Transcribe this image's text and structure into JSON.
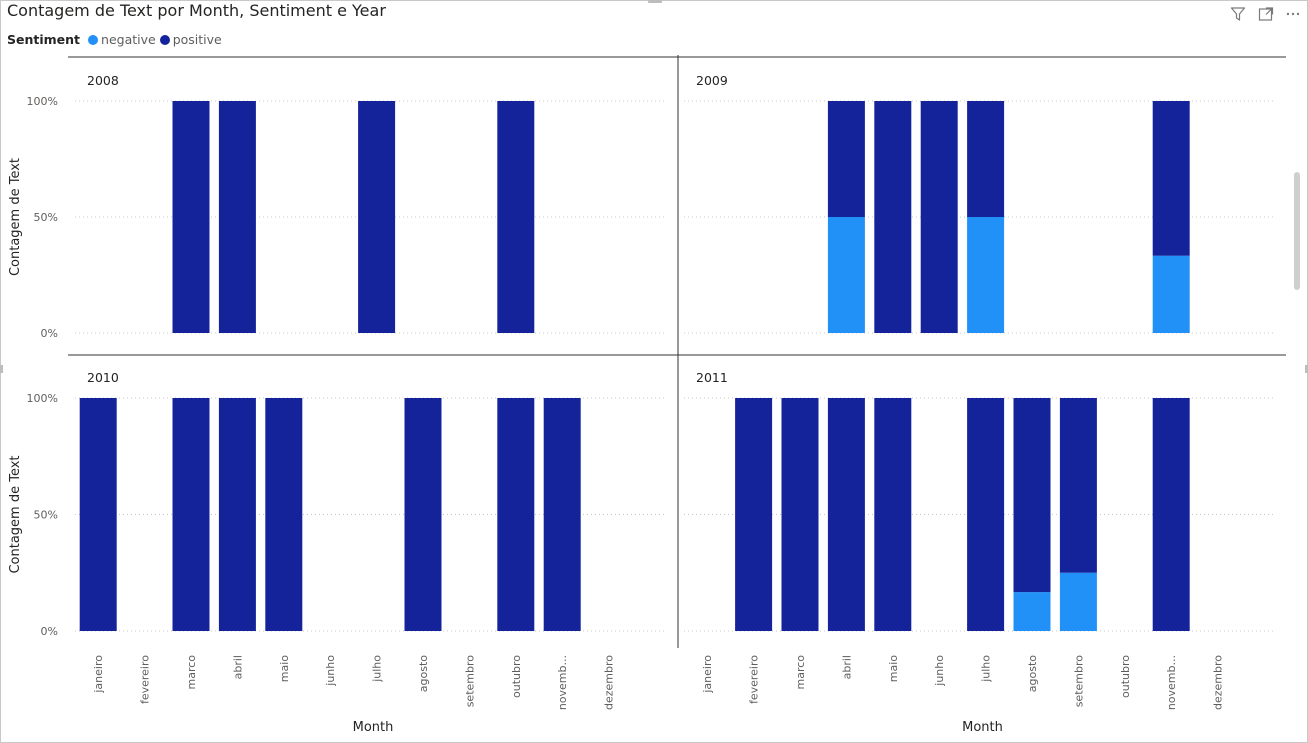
{
  "title": "Contagem de Text por Month, Sentiment e Year",
  "legend": {
    "title": "Sentiment",
    "items": [
      {
        "label": "negative",
        "color": "#2190f7"
      },
      {
        "label": "positive",
        "color": "#14239a"
      }
    ]
  },
  "icons": [
    "filter-icon",
    "focus-mode-icon",
    "more-options-icon"
  ],
  "chart_data": {
    "type": "bar",
    "stacked": "100%",
    "ylabel": "Contagem de Text",
    "xlabel": "Month",
    "ylim": [
      0,
      100
    ],
    "yticks": [
      "0%",
      "50%",
      "100%"
    ],
    "grid": true,
    "categories": [
      "janeiro",
      "fevereiro",
      "marco",
      "abril",
      "maio",
      "junho",
      "julho",
      "agosto",
      "setembro",
      "outubro",
      "novemb...",
      "dezembro"
    ],
    "panels": [
      {
        "year": "2008",
        "series": [
          {
            "name": "negative",
            "values": [
              null,
              null,
              0,
              0,
              null,
              null,
              0,
              null,
              null,
              0,
              null,
              null
            ]
          },
          {
            "name": "positive",
            "values": [
              null,
              null,
              100,
              100,
              null,
              null,
              100,
              null,
              null,
              100,
              null,
              null
            ]
          }
        ]
      },
      {
        "year": "2009",
        "series": [
          {
            "name": "negative",
            "values": [
              null,
              null,
              null,
              50,
              0,
              0,
              50,
              null,
              null,
              null,
              33.3,
              null
            ]
          },
          {
            "name": "positive",
            "values": [
              null,
              null,
              null,
              50,
              100,
              100,
              50,
              null,
              null,
              null,
              66.7,
              null
            ]
          }
        ]
      },
      {
        "year": "2010",
        "series": [
          {
            "name": "negative",
            "values": [
              0,
              null,
              0,
              0,
              0,
              null,
              null,
              0,
              null,
              0,
              0,
              null
            ]
          },
          {
            "name": "positive",
            "values": [
              100,
              null,
              100,
              100,
              100,
              null,
              null,
              100,
              null,
              100,
              100,
              null
            ]
          }
        ]
      },
      {
        "year": "2011",
        "series": [
          {
            "name": "negative",
            "values": [
              null,
              0,
              0,
              0,
              0,
              null,
              0,
              16.7,
              25,
              null,
              0,
              null
            ]
          },
          {
            "name": "positive",
            "values": [
              null,
              100,
              100,
              100,
              100,
              null,
              100,
              83.3,
              75,
              null,
              100,
              null
            ]
          }
        ]
      }
    ]
  }
}
